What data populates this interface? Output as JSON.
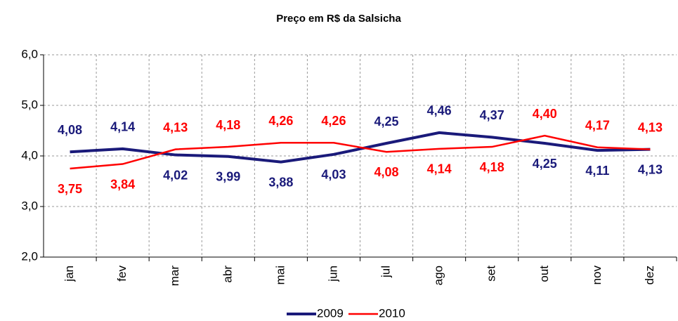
{
  "chart_data": {
    "type": "line",
    "title": "Preço em R$ da Salsicha",
    "categories": [
      "jan",
      "fev",
      "mar",
      "abr",
      "mai",
      "jun",
      "jul",
      "ago",
      "set",
      "out",
      "nov",
      "dez"
    ],
    "series": [
      {
        "name": "2009",
        "color": "#1a1a7a",
        "values": [
          4.08,
          4.14,
          4.02,
          3.99,
          3.88,
          4.03,
          4.25,
          4.46,
          4.37,
          4.25,
          4.11,
          4.13
        ],
        "value_labels": [
          "4,08",
          "4,14",
          "4,02",
          "3,99",
          "3,88",
          "4,03",
          "4,25",
          "4,46",
          "4,37",
          "4,25",
          "4,11",
          "4,13"
        ]
      },
      {
        "name": "2010",
        "color": "#ff0000",
        "values": [
          3.75,
          3.84,
          4.13,
          4.18,
          4.26,
          4.26,
          4.08,
          4.14,
          4.18,
          4.4,
          4.17,
          4.13
        ],
        "value_labels": [
          "3,75",
          "3,84",
          "4,13",
          "4,18",
          "4,26",
          "4,26",
          "4,08",
          "4,14",
          "4,18",
          "4,40",
          "4,17",
          "4,13"
        ]
      }
    ],
    "ylim": [
      2,
      6
    ],
    "yticks": [
      {
        "value": 2,
        "label": "2,0"
      },
      {
        "value": 3,
        "label": "3,0"
      },
      {
        "value": 4,
        "label": "4,0"
      },
      {
        "value": 5,
        "label": "5,0"
      },
      {
        "value": 6,
        "label": "6,0"
      }
    ],
    "grid": true,
    "legend": "bottom"
  }
}
